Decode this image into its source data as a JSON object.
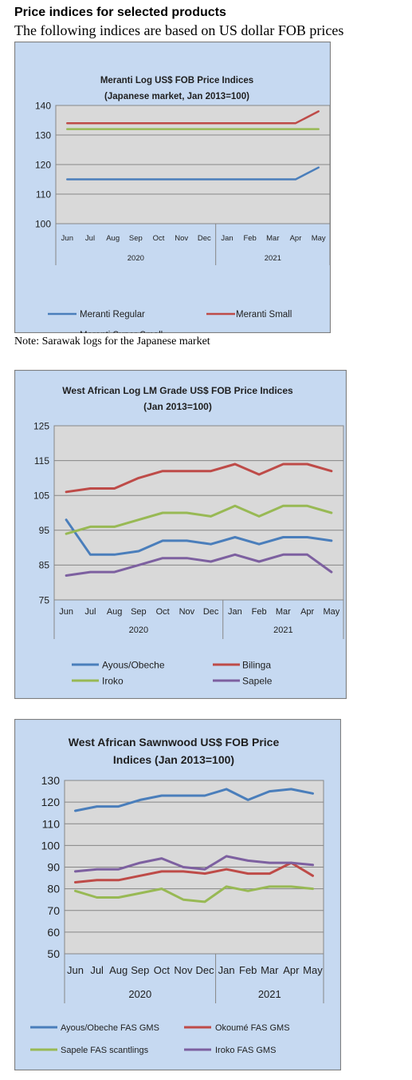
{
  "page": {
    "heading": "Price indices for selected products",
    "subheading": "The following indices are based on US dollar FOB prices",
    "note": "Note: Sarawak logs for the Japanese market"
  },
  "chart_data": [
    {
      "type": "line",
      "title": [
        "Meranti Log US$ FOB Price Indices",
        "(Japanese market, Jan 2013=100)"
      ],
      "categories": [
        "Jun",
        "Jul",
        "Aug",
        "Sep",
        "Oct",
        "Nov",
        "Dec",
        "Jan",
        "Feb",
        "Mar",
        "Apr",
        "May"
      ],
      "year_groups": [
        {
          "label": "2020",
          "count": 7
        },
        {
          "label": "2021",
          "count": 5
        }
      ],
      "ylim": [
        100,
        140
      ],
      "yticks": [
        100,
        110,
        120,
        130,
        140
      ],
      "grid": true,
      "legend_position": "bottom",
      "series": [
        {
          "name": "Meranti Regular",
          "color": "#4a7ebb",
          "values": [
            115,
            115,
            115,
            115,
            115,
            115,
            115,
            115,
            115,
            115,
            115,
            119
          ]
        },
        {
          "name": "Meranti Small",
          "color": "#be4b48",
          "values": [
            134,
            134,
            134,
            134,
            134,
            134,
            134,
            134,
            134,
            134,
            134,
            138
          ]
        },
        {
          "name": "Meranti Super Small",
          "color": "#98b954",
          "values": [
            132,
            132,
            132,
            132,
            132,
            132,
            132,
            132,
            132,
            132,
            132,
            132
          ]
        }
      ]
    },
    {
      "type": "line",
      "title": [
        "West African Log LM Grade US$ FOB Price Indices",
        "(Jan 2013=100)"
      ],
      "categories": [
        "Jun",
        "Jul",
        "Aug",
        "Sep",
        "Oct",
        "Nov",
        "Dec",
        "Jan",
        "Feb",
        "Mar",
        "Apr",
        "May"
      ],
      "year_groups": [
        {
          "label": "2020",
          "count": 7
        },
        {
          "label": "2021",
          "count": 5
        }
      ],
      "ylim": [
        75,
        125
      ],
      "yticks": [
        75,
        85,
        95,
        105,
        115,
        125
      ],
      "grid": true,
      "legend_position": "bottom",
      "series": [
        {
          "name": "Ayous/Obeche",
          "color": "#4a7ebb",
          "values": [
            98,
            88,
            88,
            89,
            92,
            92,
            91,
            93,
            91,
            93,
            93,
            92
          ]
        },
        {
          "name": "Bilinga",
          "color": "#be4b48",
          "values": [
            106,
            107,
            107,
            110,
            112,
            112,
            112,
            114,
            111,
            114,
            114,
            112
          ]
        },
        {
          "name": "Iroko",
          "color": "#98b954",
          "values": [
            94,
            96,
            96,
            98,
            100,
            100,
            99,
            102,
            99,
            102,
            102,
            100
          ]
        },
        {
          "name": "Sapele",
          "color": "#7d60a0",
          "values": [
            82,
            83,
            83,
            85,
            87,
            87,
            86,
            88,
            86,
            88,
            88,
            83
          ]
        }
      ]
    },
    {
      "type": "line",
      "title": [
        "West African Sawnwood US$ FOB Price",
        "Indices (Jan 2013=100)"
      ],
      "categories": [
        "Jun",
        "Jul",
        "Aug",
        "Sep",
        "Oct",
        "Nov",
        "Dec",
        "Jan",
        "Feb",
        "Mar",
        "Apr",
        "May"
      ],
      "year_groups": [
        {
          "label": "2020",
          "count": 7
        },
        {
          "label": "2021",
          "count": 5
        }
      ],
      "ylim": [
        50,
        130
      ],
      "yticks": [
        50,
        60,
        70,
        80,
        90,
        100,
        110,
        120,
        130
      ],
      "grid": true,
      "legend_position": "bottom",
      "series": [
        {
          "name": "Ayous/Obeche FAS GMS",
          "color": "#4a7ebb",
          "values": [
            116,
            118,
            118,
            121,
            123,
            123,
            123,
            126,
            121,
            125,
            126,
            124
          ]
        },
        {
          "name": "Okoumé FAS GMS",
          "color": "#be4b48",
          "values": [
            83,
            84,
            84,
            86,
            88,
            88,
            87,
            89,
            87,
            87,
            92,
            86
          ]
        },
        {
          "name": "Sapele FAS scantlings",
          "color": "#98b954",
          "values": [
            79,
            76,
            76,
            78,
            80,
            75,
            74,
            81,
            79,
            81,
            81,
            80
          ]
        },
        {
          "name": "Iroko FAS GMS",
          "color": "#7d60a0",
          "values": [
            88,
            89,
            89,
            92,
            94,
            90,
            89,
            95,
            93,
            92,
            92,
            91
          ]
        }
      ]
    }
  ]
}
